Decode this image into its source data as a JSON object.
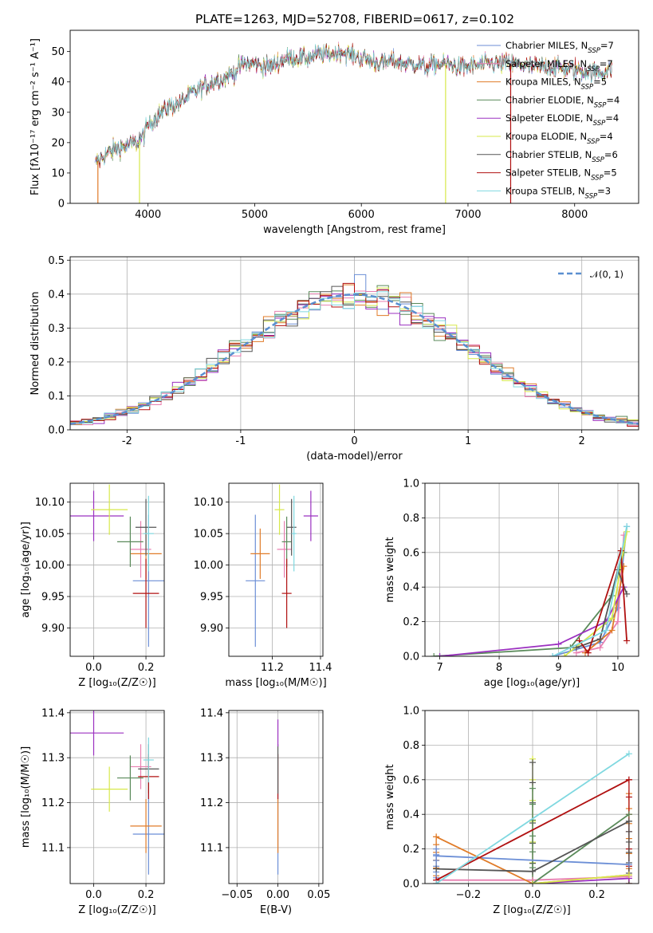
{
  "figure": {
    "title": "PLATE=1263, MJD=52708, FIBERID=0617, z=0.102"
  },
  "colors": {
    "Chabrier MILES": "#6b8ed6",
    "Salpeter MILES": "#e87fb0",
    "Kroupa MILES": "#e07b28",
    "Chabrier ELODIE": "#5a8a5a",
    "Salpeter ELODIE": "#9b30c0",
    "Kroupa ELODIE": "#d7e84a",
    "Chabrier STELIB": "#555555",
    "Salpeter STELIB": "#b01010",
    "Kroupa STELIB": "#7fd8e0"
  },
  "chart_data": [
    {
      "id": "spectrum",
      "type": "line",
      "xlabel": "wavelength [Angstrom, rest frame]",
      "ylabel": "Flux [fλ10⁻¹⁷ erg cm⁻² s⁻¹ A⁻¹]",
      "xlim": [
        3270,
        8600
      ],
      "ylim": [
        0,
        57
      ],
      "xticks": [
        4000,
        5000,
        6000,
        7000,
        8000
      ],
      "yticks": [
        0,
        10,
        20,
        30,
        40,
        50
      ],
      "grid": false,
      "legend_position": "top-right",
      "continuum": [
        [
          3500,
          13
        ],
        [
          3600,
          16
        ],
        [
          3700,
          18
        ],
        [
          3800,
          19
        ],
        [
          3900,
          20
        ],
        [
          3950,
          22
        ],
        [
          4000,
          26
        ],
        [
          4100,
          29
        ],
        [
          4200,
          32
        ],
        [
          4300,
          33
        ],
        [
          4400,
          36
        ],
        [
          4500,
          38
        ],
        [
          4600,
          40
        ],
        [
          4700,
          41
        ],
        [
          4800,
          43
        ],
        [
          4900,
          46
        ],
        [
          5000,
          46
        ],
        [
          5100,
          45
        ],
        [
          5200,
          46
        ],
        [
          5300,
          48
        ],
        [
          5400,
          48
        ],
        [
          5500,
          48
        ],
        [
          5600,
          49
        ],
        [
          5700,
          49
        ],
        [
          5800,
          50
        ],
        [
          5900,
          49
        ],
        [
          6000,
          48
        ],
        [
          6100,
          47
        ],
        [
          6200,
          46
        ],
        [
          6300,
          47
        ],
        [
          6400,
          46
        ],
        [
          6500,
          46
        ],
        [
          6600,
          45
        ],
        [
          6700,
          46
        ],
        [
          6800,
          46
        ],
        [
          6900,
          45
        ],
        [
          7000,
          45
        ],
        [
          7200,
          46
        ],
        [
          7400,
          46
        ],
        [
          7600,
          45
        ],
        [
          7800,
          45
        ],
        [
          8000,
          44
        ],
        [
          8200,
          43
        ],
        [
          8350,
          44
        ]
      ],
      "series": [
        {
          "name": "Chabrier MILES, N_SSP=7",
          "label_main": "Chabrier MILES, N",
          "label_sub": "SSP",
          "label_tail": "=7",
          "key": "Chabrier MILES"
        },
        {
          "name": "Salpeter MILES, N_SSP=7",
          "label_main": "Salpeter MILES, N",
          "label_sub": "SSP",
          "label_tail": "=7",
          "key": "Salpeter MILES"
        },
        {
          "name": "Kroupa MILES, N_SSP=5",
          "label_main": "Kroupa MILES, N",
          "label_sub": "SSP",
          "label_tail": "=5",
          "key": "Kroupa MILES"
        },
        {
          "name": "Chabrier ELODIE, N_SSP=4",
          "label_main": "Chabrier ELODIE, N",
          "label_sub": "SSP",
          "label_tail": "=4",
          "key": "Chabrier ELODIE"
        },
        {
          "name": "Salpeter ELODIE, N_SSP=4",
          "label_main": "Salpeter ELODIE, N",
          "label_sub": "SSP",
          "label_tail": "=4",
          "key": "Salpeter ELODIE"
        },
        {
          "name": "Kroupa ELODIE, N_SSP=4",
          "label_main": "Kroupa ELODIE, N",
          "label_sub": "SSP",
          "label_tail": "=4",
          "key": "Kroupa ELODIE"
        },
        {
          "name": "Chabrier STELIB, N_SSP=6",
          "label_main": "Chabrier STELIB, N",
          "label_sub": "SSP",
          "label_tail": "=6",
          "key": "Chabrier STELIB"
        },
        {
          "name": "Salpeter STELIB, N_SSP=5",
          "label_main": "Salpeter STELIB, N",
          "label_sub": "SSP",
          "label_tail": "=5",
          "key": "Salpeter STELIB"
        },
        {
          "name": "Kroupa STELIB, N_SSP=3",
          "label_main": "Kroupa STELIB, N",
          "label_sub": "SSP",
          "label_tail": "=3",
          "key": "Kroupa STELIB"
        }
      ],
      "drops": [
        [
          3530,
          "Kroupa MILES"
        ],
        [
          3920,
          "Kroupa ELODIE"
        ],
        [
          6790,
          "Kroupa ELODIE"
        ],
        [
          7400,
          "Salpeter STELIB"
        ]
      ]
    },
    {
      "id": "residual-histogram",
      "type": "line",
      "xlabel": "(data-model)/error",
      "ylabel": "Normed distribution",
      "xlim": [
        -2.5,
        2.5
      ],
      "ylim": [
        0,
        0.51
      ],
      "xticks": [
        -2,
        -1,
        0,
        1,
        2
      ],
      "yticks": [
        0.0,
        0.1,
        0.2,
        0.3,
        0.4,
        0.5
      ],
      "ytick_labels": [
        "0.0",
        "0.1",
        "0.2",
        "0.3",
        "0.4",
        "0.5"
      ],
      "grid": true,
      "legend_position": "top-right",
      "reference_label": "𝒩(0, 1)",
      "bin_width": 0.1
    },
    {
      "id": "age-vs-z",
      "type": "scatter",
      "xlabel": "Z [log₁₀(Z/Z☉)]",
      "ylabel": "age [log₁₀(age/yr)]",
      "xlim": [
        -0.09,
        0.27
      ],
      "ylim": [
        9.855,
        10.13
      ],
      "xticks": [
        0.0,
        0.2
      ],
      "xtick_labels": [
        "0.0",
        "0.2"
      ],
      "yticks": [
        9.9,
        9.95,
        10.0,
        10.05,
        10.1
      ],
      "ytick_labels": [
        "9.90",
        "9.95",
        "10.00",
        "10.05",
        "10.10"
      ],
      "grid": true,
      "points": [
        {
          "key": "Chabrier MILES",
          "x": 0.21,
          "xerr": 0.06,
          "y": 9.975,
          "yerr": 0.105
        },
        {
          "key": "Salpeter MILES",
          "x": 0.18,
          "xerr": 0.04,
          "y": 10.025,
          "yerr": 0.045
        },
        {
          "key": "Kroupa MILES",
          "x": 0.2,
          "xerr": 0.06,
          "y": 10.018,
          "yerr": 0.04
        },
        {
          "key": "Chabrier ELODIE",
          "x": 0.14,
          "xerr": 0.05,
          "y": 10.037,
          "yerr": 0.04
        },
        {
          "key": "Salpeter ELODIE",
          "x": 0.0,
          "xerr": 0.115,
          "y": 10.078,
          "yerr": 0.04
        },
        {
          "key": "Kroupa ELODIE",
          "x": 0.06,
          "xerr": 0.07,
          "y": 10.088,
          "yerr": 0.04
        },
        {
          "key": "Chabrier STELIB",
          "x": 0.2,
          "xerr": 0.04,
          "y": 10.06,
          "yerr": 0.045
        },
        {
          "key": "Salpeter STELIB",
          "x": 0.2,
          "xerr": 0.05,
          "y": 9.955,
          "yerr": 0.055
        },
        {
          "key": "Kroupa STELIB",
          "x": 0.21,
          "xerr": 0.02,
          "y": 10.05,
          "yerr": 0.06
        }
      ]
    },
    {
      "id": "age-vs-mass",
      "type": "scatter",
      "xlabel": "mass [log₁₀(M/M☉)]",
      "ylabel": "",
      "xlim": [
        11.02,
        11.41
      ],
      "ylim": [
        9.855,
        10.13
      ],
      "xticks": [
        11.2,
        11.4
      ],
      "xtick_labels": [
        "11.2",
        "11.4"
      ],
      "yticks": [
        9.9,
        9.95,
        10.0,
        10.05,
        10.1
      ],
      "ytick_labels": [
        "9.90",
        "9.95",
        "10.00",
        "10.05",
        "10.10"
      ],
      "grid": true,
      "points": [
        {
          "key": "Chabrier MILES",
          "x": 11.13,
          "xerr": 0.04,
          "y": 9.975,
          "yerr": 0.105
        },
        {
          "key": "Salpeter MILES",
          "x": 11.25,
          "xerr": 0.03,
          "y": 10.025,
          "yerr": 0.045
        },
        {
          "key": "Kroupa MILES",
          "x": 11.15,
          "xerr": 0.04,
          "y": 10.018,
          "yerr": 0.04
        },
        {
          "key": "Chabrier ELODIE",
          "x": 11.26,
          "xerr": 0.02,
          "y": 10.037,
          "yerr": 0.04
        },
        {
          "key": "Salpeter ELODIE",
          "x": 11.36,
          "xerr": 0.03,
          "y": 10.078,
          "yerr": 0.04
        },
        {
          "key": "Kroupa ELODIE",
          "x": 11.23,
          "xerr": 0.02,
          "y": 10.088,
          "yerr": 0.04
        },
        {
          "key": "Chabrier STELIB",
          "x": 11.28,
          "xerr": 0.02,
          "y": 10.06,
          "yerr": 0.045
        },
        {
          "key": "Salpeter STELIB",
          "x": 11.26,
          "xerr": 0.02,
          "y": 9.955,
          "yerr": 0.055
        },
        {
          "key": "Kroupa STELIB",
          "x": 11.29,
          "xerr": 0.01,
          "y": 10.05,
          "yerr": 0.06
        }
      ]
    },
    {
      "id": "mass-weight-vs-age",
      "type": "line",
      "xlabel": "age [log₁₀(age/yr)]",
      "ylabel": "mass weight",
      "xlim": [
        6.75,
        10.35
      ],
      "ylim": [
        0,
        1.0
      ],
      "xticks": [
        7,
        8,
        9,
        10
      ],
      "yticks": [
        0.0,
        0.2,
        0.4,
        0.6,
        0.8,
        1.0
      ],
      "ytick_labels": [
        "0.0",
        "0.2",
        "0.4",
        "0.6",
        "0.8",
        "1.0"
      ],
      "grid": true,
      "series": [
        {
          "key": "Chabrier MILES",
          "x": [
            8.9,
            9.7,
            10.0,
            10.15
          ],
          "y": [
            0.0,
            0.08,
            0.28,
            0.75
          ]
        },
        {
          "key": "Salpeter MILES",
          "x": [
            9.3,
            9.7,
            10.0,
            10.1
          ],
          "y": [
            0.02,
            0.05,
            0.2,
            0.7
          ]
        },
        {
          "key": "Kroupa MILES",
          "x": [
            9.45,
            9.9,
            10.1
          ],
          "y": [
            0.02,
            0.15,
            0.52
          ]
        },
        {
          "key": "Chabrier ELODIE",
          "x": [
            6.9,
            9.2,
            9.9,
            10.1
          ],
          "y": [
            0.0,
            0.05,
            0.35,
            0.6
          ]
        },
        {
          "key": "Salpeter ELODIE",
          "x": [
            7.0,
            9.0,
            9.8,
            10.1
          ],
          "y": [
            0.0,
            0.07,
            0.2,
            0.4
          ]
        },
        {
          "key": "Kroupa ELODIE",
          "x": [
            9.1,
            9.9,
            10.15
          ],
          "y": [
            0.0,
            0.22,
            0.72
          ]
        },
        {
          "key": "Chabrier STELIB",
          "x": [
            9.3,
            9.7,
            10.0,
            10.15
          ],
          "y": [
            0.05,
            0.1,
            0.5,
            0.36
          ]
        },
        {
          "key": "Salpeter STELIB",
          "x": [
            9.35,
            9.5,
            10.05,
            10.15
          ],
          "y": [
            0.09,
            0.02,
            0.61,
            0.09
          ]
        },
        {
          "key": "Kroupa STELIB",
          "x": [
            8.9,
            9.8,
            10.15
          ],
          "y": [
            0.0,
            0.15,
            0.75
          ]
        }
      ]
    },
    {
      "id": "mass-vs-z",
      "type": "scatter",
      "xlabel": "Z [log₁₀(Z/Z☉)]",
      "ylabel": "mass [log₁₀(M/M☉)]",
      "xlim": [
        -0.09,
        0.27
      ],
      "ylim": [
        11.02,
        11.405
      ],
      "xticks": [
        0.0,
        0.2
      ],
      "xtick_labels": [
        "0.0",
        "0.2"
      ],
      "yticks": [
        11.1,
        11.2,
        11.3,
        11.4
      ],
      "ytick_labels": [
        "11.1",
        "11.2",
        "11.3",
        "11.4"
      ],
      "grid": true,
      "points": [
        {
          "key": "Chabrier MILES",
          "x": 0.21,
          "xerr": 0.06,
          "y": 11.13,
          "yerr": 0.09
        },
        {
          "key": "Salpeter MILES",
          "x": 0.18,
          "xerr": 0.04,
          "y": 11.28,
          "yerr": 0.05
        },
        {
          "key": "Kroupa MILES",
          "x": 0.2,
          "xerr": 0.06,
          "y": 11.148,
          "yerr": 0.06
        },
        {
          "key": "Chabrier ELODIE",
          "x": 0.14,
          "xerr": 0.05,
          "y": 11.255,
          "yerr": 0.05
        },
        {
          "key": "Salpeter ELODIE",
          "x": 0.0,
          "xerr": 0.115,
          "y": 11.355,
          "yerr": 0.05
        },
        {
          "key": "Kroupa ELODIE",
          "x": 0.06,
          "xerr": 0.07,
          "y": 11.23,
          "yerr": 0.05
        },
        {
          "key": "Chabrier STELIB",
          "x": 0.21,
          "xerr": 0.04,
          "y": 11.275,
          "yerr": 0.055
        },
        {
          "key": "Salpeter STELIB",
          "x": 0.21,
          "xerr": 0.04,
          "y": 11.258,
          "yerr": 0.05
        },
        {
          "key": "Kroupa STELIB",
          "x": 0.21,
          "xerr": 0.02,
          "y": 11.295,
          "yerr": 0.05
        }
      ]
    },
    {
      "id": "mass-vs-ebv",
      "type": "scatter",
      "xlabel": "E(B-V)",
      "ylabel": "",
      "xlim": [
        -0.06,
        0.055
      ],
      "ylim": [
        11.02,
        11.405
      ],
      "xticks": [
        -0.05,
        0.0,
        0.05
      ],
      "xtick_labels": [
        "−0.05",
        "0.00",
        "0.05"
      ],
      "yticks": [
        11.1,
        11.2,
        11.3,
        11.4
      ],
      "ytick_labels": [
        "11.1",
        "11.2",
        "11.3",
        "11.4"
      ],
      "grid": true,
      "points": [
        {
          "key": "Chabrier MILES",
          "x": 0.0,
          "xerr": 0.0,
          "y": 11.13,
          "yerr": 0.09
        },
        {
          "key": "Kroupa MILES",
          "x": 0.0,
          "xerr": 0.0,
          "y": 11.148,
          "yerr": 0.06
        },
        {
          "key": "Salpeter STELIB",
          "x": 0.0,
          "xerr": 0.0,
          "y": 11.258,
          "yerr": 0.05
        },
        {
          "key": "Chabrier STELIB",
          "x": 0.0,
          "xerr": 0.0,
          "y": 11.275,
          "yerr": 0.055
        },
        {
          "key": "Salpeter ELODIE",
          "x": 0.0,
          "xerr": 0.0,
          "y": 11.355,
          "yerr": 0.03
        }
      ]
    },
    {
      "id": "mass-weight-vs-z",
      "type": "line",
      "xlabel": "Z [log₁₀(Z/Z☉)]",
      "ylabel": "mass weight",
      "xlim": [
        -0.335,
        0.33
      ],
      "ylim": [
        0,
        1.0
      ],
      "xticks": [
        -0.2,
        0.0,
        0.2
      ],
      "xtick_labels": [
        "−0.2",
        "0.0",
        "0.2"
      ],
      "yticks": [
        0.0,
        0.2,
        0.4,
        0.6,
        0.8,
        1.0
      ],
      "ytick_labels": [
        "0.0",
        "0.2",
        "0.4",
        "0.6",
        "0.8",
        "1.0"
      ],
      "grid": true,
      "series": [
        {
          "key": "Chabrier MILES",
          "x": [
            -0.3,
            0.3
          ],
          "y": [
            0.16,
            0.11
          ]
        },
        {
          "key": "Salpeter MILES",
          "x": [
            -0.3,
            0.0,
            0.3
          ],
          "y": [
            0.02,
            0.02,
            0.04
          ]
        },
        {
          "key": "Kroupa MILES",
          "x": [
            -0.3,
            0.0,
            0.3
          ],
          "y": [
            0.27,
            0.0,
            0.05
          ]
        },
        {
          "key": "Chabrier ELODIE",
          "x": [
            0.0,
            0.3
          ],
          "y": [
            0.0,
            0.4
          ]
        },
        {
          "key": "Salpeter ELODIE",
          "x": [
            0.0,
            0.3
          ],
          "y": [
            0.0,
            0.03
          ]
        },
        {
          "key": "Kroupa ELODIE",
          "x": [
            0.0,
            0.3
          ],
          "y": [
            0.0,
            0.05
          ]
        },
        {
          "key": "Chabrier STELIB",
          "x": [
            -0.3,
            0.0,
            0.3
          ],
          "y": [
            0.085,
            0.07,
            0.36
          ]
        },
        {
          "key": "Salpeter STELIB",
          "x": [
            -0.3,
            0.3
          ],
          "y": [
            0.02,
            0.6
          ]
        },
        {
          "key": "Kroupa STELIB",
          "x": [
            -0.3,
            0.3
          ],
          "y": [
            0.0,
            0.75
          ]
        }
      ],
      "verticals": [
        {
          "key": "Kroupa ELODIE",
          "x": 0.0,
          "y0": 0.0,
          "y1": 0.72
        },
        {
          "key": "Chabrier STELIB",
          "x": 0.0,
          "y0": 0.0,
          "y1": 0.7
        },
        {
          "key": "Chabrier ELODIE",
          "x": 0.0,
          "y0": 0.0,
          "y1": 0.55
        },
        {
          "key": "Kroupa MILES",
          "x": 0.3,
          "y0": 0.0,
          "y1": 0.52
        },
        {
          "key": "Salpeter STELIB",
          "x": 0.3,
          "y0": 0.0,
          "y1": 0.6
        },
        {
          "key": "Chabrier STELIB",
          "x": 0.3,
          "y0": 0.0,
          "y1": 0.36
        },
        {
          "key": "Kroupa MILES",
          "x": -0.3,
          "y0": 0.0,
          "y1": 0.27
        },
        {
          "key": "Chabrier MILES",
          "x": -0.3,
          "y0": 0.0,
          "y1": 0.2
        }
      ]
    }
  ]
}
